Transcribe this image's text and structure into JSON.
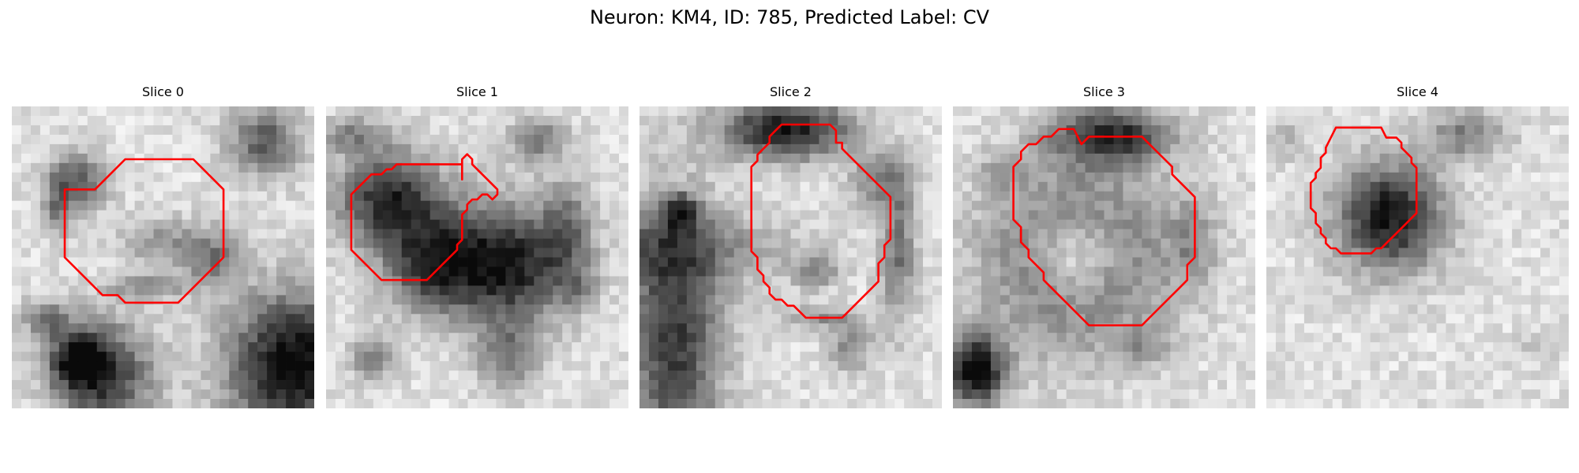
{
  "figure": {
    "title": "Neuron: KM4, ID: 785, Predicted Label: CV",
    "contour_color": "#ff0000",
    "colormap": "grayscale",
    "panels": [
      {
        "title": "Slice 0"
      },
      {
        "title": "Slice 1"
      },
      {
        "title": "Slice 2"
      },
      {
        "title": "Slice 3"
      },
      {
        "title": "Slice 4"
      }
    ]
  }
}
